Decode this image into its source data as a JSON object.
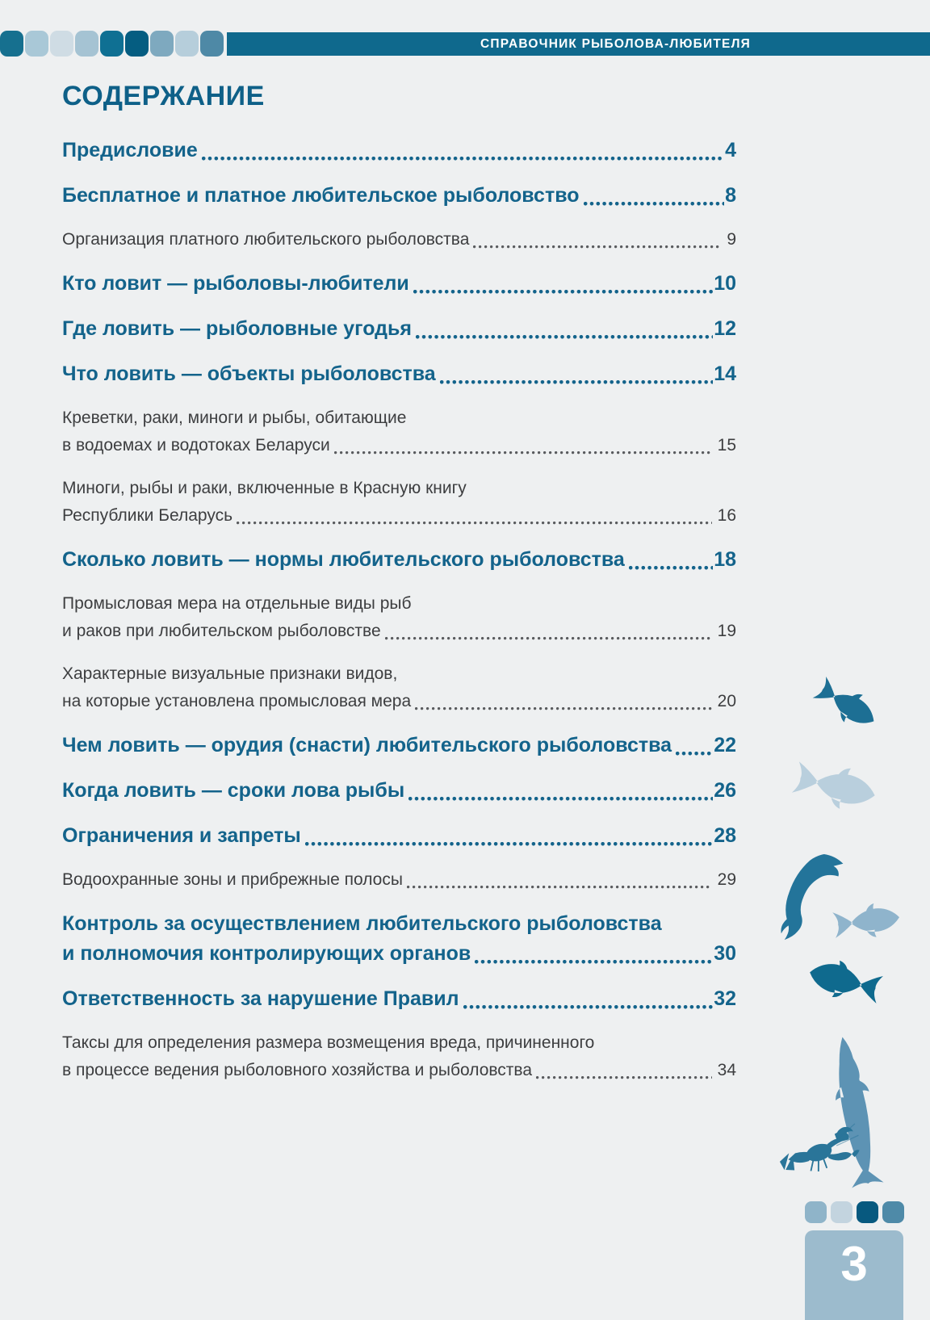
{
  "header": {
    "title": "СПРАВОЧНИК РЫБОЛОВА-ЛЮБИТЕЛЯ",
    "bar_color": "#0f698d",
    "squares": [
      "#16708f",
      "#a9c8d7",
      "#cfdce4",
      "#a5c3d3",
      "#0f7093",
      "#055d81",
      "#7ea9bf",
      "#b6cedb",
      "#4e89a6"
    ]
  },
  "page_title": "СОДЕРЖАНИЕ",
  "toc_entries": [
    {
      "level": "chapter",
      "lines": [
        "Предисловие"
      ],
      "page": "4"
    },
    {
      "level": "chapter",
      "lines": [
        "Бесплатное и платное любительское рыболовство"
      ],
      "page": "8"
    },
    {
      "level": "section",
      "lines": [
        "Организация платного любительского рыболовства"
      ],
      "page": "9"
    },
    {
      "level": "chapter",
      "lines": [
        "Кто ловит — рыболовы-любители"
      ],
      "page": "10"
    },
    {
      "level": "chapter",
      "lines": [
        "Где ловить — рыболовные угодья"
      ],
      "page": "12"
    },
    {
      "level": "chapter",
      "lines": [
        "Что ловить — объекты рыболовства"
      ],
      "page": "14"
    },
    {
      "level": "section",
      "lines": [
        "Креветки, раки, миноги и рыбы, обитающие",
        "в водоемах и водотоках Беларуси"
      ],
      "page": "15"
    },
    {
      "level": "section",
      "lines": [
        "Миноги, рыбы и раки, включенные в Красную книгу",
        "Республики Беларусь"
      ],
      "page": "16"
    },
    {
      "level": "chapter",
      "lines": [
        "Сколько ловить — нормы любительского рыболовства"
      ],
      "page": "18"
    },
    {
      "level": "section",
      "lines": [
        "Промысловая мера на отдельные виды рыб",
        "и раков при любительском рыболовстве"
      ],
      "page": "19"
    },
    {
      "level": "section",
      "lines": [
        "Характерные визуальные признаки видов,",
        "на которые установлена промысловая мера"
      ],
      "page": "20"
    },
    {
      "level": "chapter",
      "lines": [
        "Чем ловить — орудия (снасти) любительского рыболовства"
      ],
      "page": "22"
    },
    {
      "level": "chapter",
      "lines": [
        "Когда ловить — сроки лова рыбы"
      ],
      "page": "26"
    },
    {
      "level": "chapter",
      "lines": [
        "Ограничения и запреты"
      ],
      "page": "28"
    },
    {
      "level": "section",
      "lines": [
        "Водоохранные зоны и прибрежные полосы"
      ],
      "page": "29"
    },
    {
      "level": "chapter",
      "lines": [
        "Контроль за осуществлением любительского рыболовства",
        "и полномочия контролирующих органов"
      ],
      "page": "30"
    },
    {
      "level": "chapter",
      "lines": [
        "Ответственность за нарушение Правил"
      ],
      "page": "32"
    },
    {
      "level": "section",
      "lines": [
        "Таксы для определения размера возмещения вреда, причиненного",
        "в процессе ведения рыболовного хозяйства и рыболовства"
      ],
      "page": "34"
    }
  ],
  "colors": {
    "background": "#eef0f1",
    "chapter_text": "#13638b",
    "section_text": "#3d3e40",
    "header_text": "#ffffff"
  },
  "decor": {
    "fish": [
      {
        "name": "diving-fish-icon",
        "color": "#1d6f94"
      },
      {
        "name": "light-fish-icon",
        "color": "#b9cfdd"
      },
      {
        "name": "jumping-fish-icon",
        "color": "#23749a"
      },
      {
        "name": "small-fish-icon",
        "color": "#8fb4cc"
      },
      {
        "name": "bream-fish-icon",
        "color": "#0f6a8e"
      },
      {
        "name": "pike-fish-icon",
        "color": "#5d93b4"
      },
      {
        "name": "crayfish-icon",
        "color": "#2a7599"
      }
    ]
  },
  "footer": {
    "squares": [
      "#8fb4c9",
      "#c3d4df",
      "#07597f",
      "#4e8aa8"
    ],
    "page_box_color": "#9cbbcd",
    "page_number": "3"
  }
}
